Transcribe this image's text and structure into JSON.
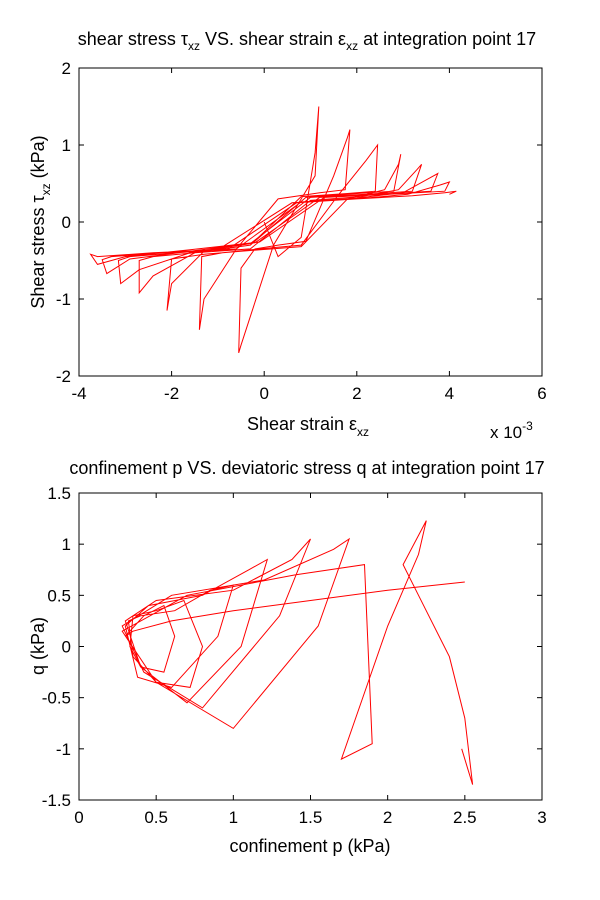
{
  "charts": [
    {
      "title_pre": "shear stress ",
      "title_sym": "τ",
      "title_sub1": "xz",
      "title_mid": " VS. shear strain ",
      "title_sym2": "ε",
      "title_sub2": "xz",
      "title_post": " at integration point 17",
      "xlabel_pre": "Shear strain ",
      "xlabel_sym": "ε",
      "xlabel_sub": "xz",
      "ylabel_pre": "Shear stress ",
      "ylabel_sym": "τ",
      "ylabel_sub": "xz",
      "ylabel_post": " (kPa)",
      "x_multiplier_base": "x 10",
      "x_multiplier_exp": "-3",
      "xticks": [
        "-4",
        "-2",
        "0",
        "2",
        "4",
        "6"
      ],
      "yticks": [
        "-2",
        "-1",
        "0",
        "1",
        "2"
      ]
    },
    {
      "title": "confinement p VS. deviatoric stress q at integration point 17",
      "xlabel": "confinement p (kPa)",
      "ylabel": "q (kPa)",
      "xticks": [
        "0",
        "0.5",
        "1",
        "1.5",
        "2",
        "2.5",
        "3"
      ],
      "yticks": [
        "-1.5",
        "-1",
        "-0.5",
        "0",
        "0.5",
        "1",
        "1.5"
      ]
    }
  ],
  "chart_data": [
    {
      "type": "line",
      "xlim": [
        -4,
        6
      ],
      "ylim": [
        -2,
        2
      ],
      "x_scale_note": "x 10^-3",
      "grid": false,
      "color": "#ff0000",
      "series": [
        {
          "x": [
            0,
            0.3,
            0.8,
            1.1,
            1.18,
            1.1,
            0.8,
            0.2,
            -0.5,
            -0.55,
            -0.5,
            -0.2,
            0.3,
            0.9,
            1.5,
            1.8,
            1.85,
            1.75,
            1.2,
            0.3,
            -0.6,
            -1.3,
            -1.4,
            -1.35,
            -0.9,
            -0.1,
            0.8,
            1.6,
            2.2,
            2.45,
            2.4,
            1.8,
            0.8,
            -0.3,
            -1.3,
            -2.0,
            -2.1,
            -2.0,
            -1.3,
            -0.3,
            0.8,
            1.8,
            2.6,
            2.9,
            2.95,
            2.8,
            2.0,
            0.9,
            -0.3,
            -1.5,
            -2.4,
            -2.7,
            -2.7,
            -2.4,
            -1.5,
            -0.3,
            1.0,
            2.1,
            2.9,
            3.3,
            3.4,
            3.2,
            2.2,
            1.0,
            -0.3,
            -1.6,
            -2.7,
            -3.1,
            -3.15,
            -2.9,
            -1.9,
            -0.6,
            0.8,
            2.0,
            3.0,
            3.6,
            3.75,
            3.6,
            2.5,
            1.2,
            -0.2,
            -1.6,
            -2.9,
            -3.4,
            -3.5,
            -3.3,
            -2.2,
            -0.8,
            0.7,
            2.0,
            3.1,
            3.8,
            4.0,
            3.9,
            2.7,
            1.3,
            -0.1,
            -1.6,
            -3.0,
            -3.6,
            -3.75,
            -3.6,
            -2.4,
            -1.0,
            0.6,
            2.0,
            3.2,
            3.9,
            4.15,
            4.0
          ],
          "y": [
            0,
            -0.45,
            -0.2,
            0.9,
            1.5,
            0.6,
            0.3,
            -0.3,
            -1.6,
            -1.7,
            -0.6,
            -0.35,
            -0.3,
            -0.25,
            0.6,
            1.1,
            1.2,
            0.42,
            0.38,
            0.3,
            -0.35,
            -1.0,
            -1.4,
            -0.45,
            -0.4,
            -0.35,
            -0.3,
            0.35,
            0.8,
            1.0,
            0.4,
            0.37,
            0.33,
            -0.3,
            -0.38,
            -0.8,
            -1.15,
            -0.48,
            -0.42,
            -0.37,
            -0.32,
            0.3,
            0.42,
            0.75,
            0.88,
            0.4,
            0.37,
            0.32,
            -0.3,
            -0.4,
            -0.7,
            -0.92,
            -0.5,
            -0.45,
            -0.4,
            -0.35,
            0.28,
            0.33,
            0.42,
            0.68,
            0.75,
            0.4,
            0.36,
            0.32,
            -0.28,
            -0.4,
            -0.62,
            -0.8,
            -0.5,
            -0.45,
            -0.4,
            -0.35,
            0.26,
            0.31,
            0.38,
            0.58,
            0.63,
            0.4,
            0.36,
            0.32,
            -0.27,
            -0.38,
            -0.48,
            -0.67,
            -0.49,
            -0.45,
            -0.4,
            -0.36,
            0.25,
            0.3,
            0.36,
            0.48,
            0.52,
            0.4,
            0.36,
            0.32,
            -0.26,
            -0.36,
            -0.45,
            -0.55,
            -0.42,
            -0.45,
            -0.4,
            -0.36,
            0.25,
            0.3,
            0.34,
            0.38,
            0.4,
            0.36
          ]
        }
      ]
    },
    {
      "type": "line",
      "xlim": [
        0,
        3
      ],
      "ylim": [
        -1.5,
        1.5
      ],
      "grid": false,
      "color": "#ff0000",
      "series": [
        {
          "x": [
            2.5,
            2.0,
            1.5,
            1.0,
            0.6,
            0.35,
            0.3,
            0.42,
            0.55,
            0.62,
            0.55,
            0.4,
            0.33,
            0.35,
            0.5,
            0.68,
            0.8,
            0.72,
            0.5,
            0.35,
            0.32,
            0.4,
            0.62,
            0.85,
            1.0,
            0.9,
            0.6,
            0.38,
            0.3,
            0.45,
            0.8,
            1.1,
            1.22,
            1.05,
            0.7,
            0.4,
            0.3,
            0.5,
            1.0,
            1.38,
            1.5,
            1.3,
            0.8,
            0.42,
            0.28,
            0.6,
            1.2,
            1.65,
            1.75,
            1.55,
            1.0,
            0.5,
            0.28,
            0.7,
            1.4,
            1.85,
            1.9,
            1.7,
            2.0,
            2.2,
            2.25,
            2.1,
            2.2,
            2.4,
            2.5,
            2.55,
            2.52,
            2.48
          ],
          "y": [
            0.63,
            0.55,
            0.45,
            0.35,
            0.25,
            0.15,
            0.1,
            0.3,
            0.4,
            0.1,
            -0.25,
            -0.2,
            0.0,
            0.3,
            0.35,
            0.45,
            0.0,
            -0.4,
            -0.35,
            -0.1,
            0.25,
            0.3,
            0.35,
            0.55,
            0.6,
            0.1,
            -0.4,
            -0.3,
            0.2,
            0.4,
            0.5,
            0.75,
            0.85,
            0.0,
            -0.55,
            -0.2,
            0.25,
            0.45,
            0.55,
            0.85,
            1.05,
            0.3,
            -0.6,
            -0.25,
            0.2,
            0.5,
            0.65,
            0.95,
            1.05,
            0.2,
            -0.8,
            -0.35,
            0.15,
            0.5,
            0.7,
            0.8,
            -0.95,
            -1.1,
            0.2,
            0.9,
            1.23,
            0.8,
            0.5,
            -0.1,
            -0.7,
            -1.35,
            -1.2,
            -1.0
          ]
        }
      ]
    }
  ]
}
